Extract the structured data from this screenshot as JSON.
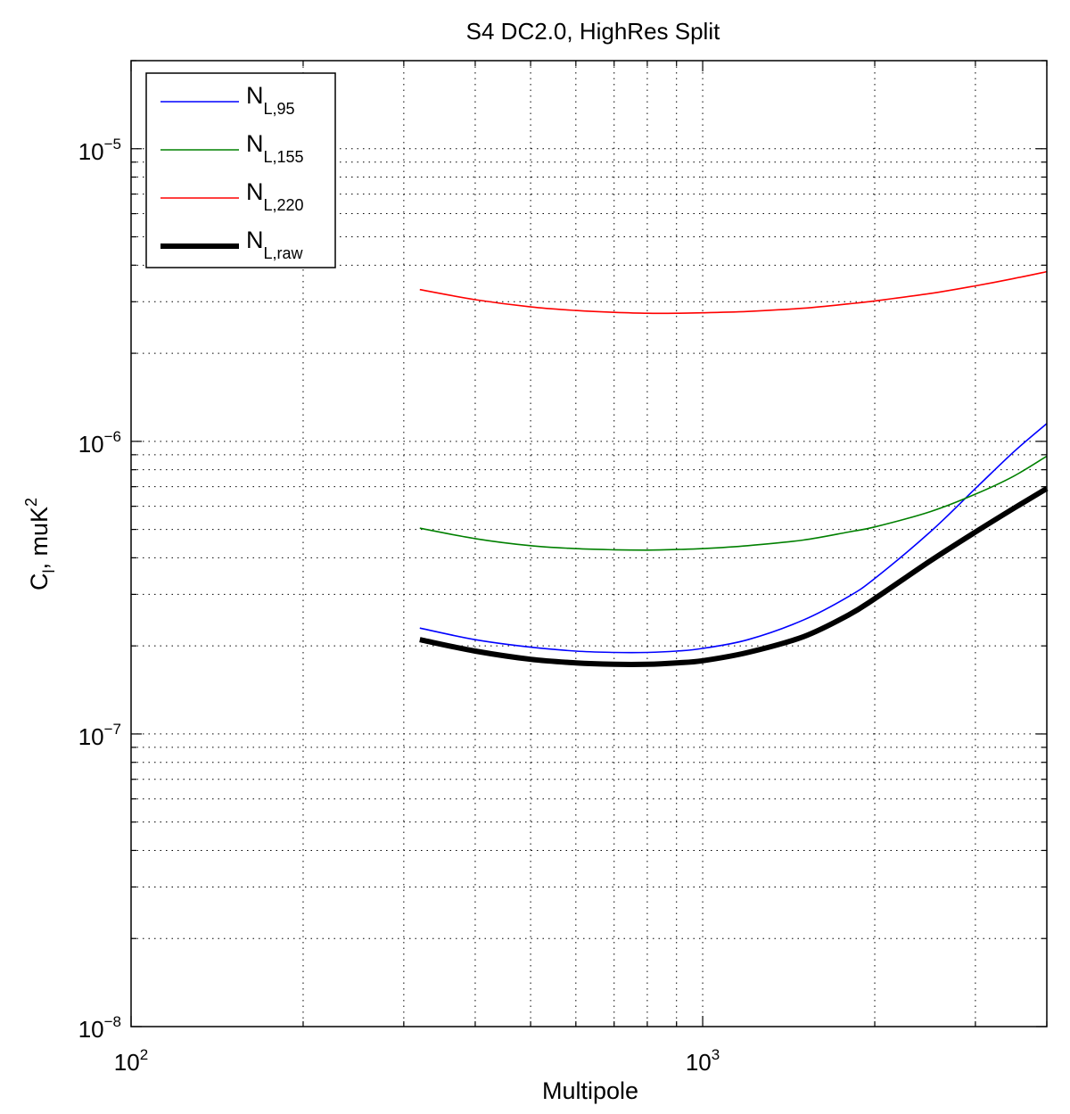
{
  "chart_data": {
    "type": "line",
    "title": "S4 DC2.0, HighRes Split",
    "xlabel": "Multipole",
    "ylabel": {
      "base": "C",
      "sub": "l",
      "suffix": ", muK",
      "sup": "2"
    },
    "x_scale": "log",
    "y_scale": "log",
    "xlim": [
      100,
      4000
    ],
    "ylim": [
      1e-08,
      2e-05
    ],
    "grid": true,
    "legend_position": "top-left",
    "x_ticks": [
      {
        "value": 100,
        "base": "10",
        "exp": "2"
      },
      {
        "value": 1000,
        "base": "10",
        "exp": "3"
      }
    ],
    "y_ticks": [
      {
        "value": 1e-08,
        "base": "10",
        "exp": "−8"
      },
      {
        "value": 1e-07,
        "base": "10",
        "exp": "−7"
      },
      {
        "value": 1e-06,
        "base": "10",
        "exp": "−6"
      },
      {
        "value": 1e-05,
        "base": "10",
        "exp": "−5"
      }
    ],
    "x": [
      320,
      400,
      500,
      600,
      700,
      800,
      900,
      1000,
      1200,
      1500,
      1800,
      2000,
      2500,
      3000,
      3500,
      4000
    ],
    "series": [
      {
        "name": "N",
        "sub": "L,95",
        "color": "#0000ff",
        "width": "thin",
        "values": [
          2.3e-07,
          2.1e-07,
          1.98e-07,
          1.92e-07,
          1.9e-07,
          1.9e-07,
          1.92e-07,
          1.96e-07,
          2.1e-07,
          2.45e-07,
          2.95e-07,
          3.4e-07,
          4.9e-07,
          6.9e-07,
          9.2e-07,
          1.15e-06
        ]
      },
      {
        "name": "N",
        "sub": "L,155",
        "color": "#008000",
        "width": "thin",
        "values": [
          5.05e-07,
          4.65e-07,
          4.4e-07,
          4.3e-07,
          4.26e-07,
          4.25e-07,
          4.27e-07,
          4.3e-07,
          4.4e-07,
          4.6e-07,
          4.9e-07,
          5.1e-07,
          5.75e-07,
          6.6e-07,
          7.6e-07,
          8.9e-07
        ]
      },
      {
        "name": "N",
        "sub": "L,220",
        "color": "#ff0000",
        "width": "thin",
        "values": [
          3.3e-06,
          3.05e-06,
          2.88e-06,
          2.8e-06,
          2.76e-06,
          2.74e-06,
          2.74e-06,
          2.75e-06,
          2.78e-06,
          2.85e-06,
          2.95e-06,
          3.02e-06,
          3.2e-06,
          3.4e-06,
          3.6e-06,
          3.8e-06
        ]
      },
      {
        "name": "N",
        "sub": "L,raw",
        "color": "#000000",
        "width": "thick",
        "values": [
          2.1e-07,
          1.92e-07,
          1.8e-07,
          1.75e-07,
          1.73e-07,
          1.73e-07,
          1.75e-07,
          1.78e-07,
          1.9e-07,
          2.15e-07,
          2.55e-07,
          2.9e-07,
          3.9e-07,
          4.9e-07,
          5.9e-07,
          6.9e-07
        ]
      }
    ]
  }
}
